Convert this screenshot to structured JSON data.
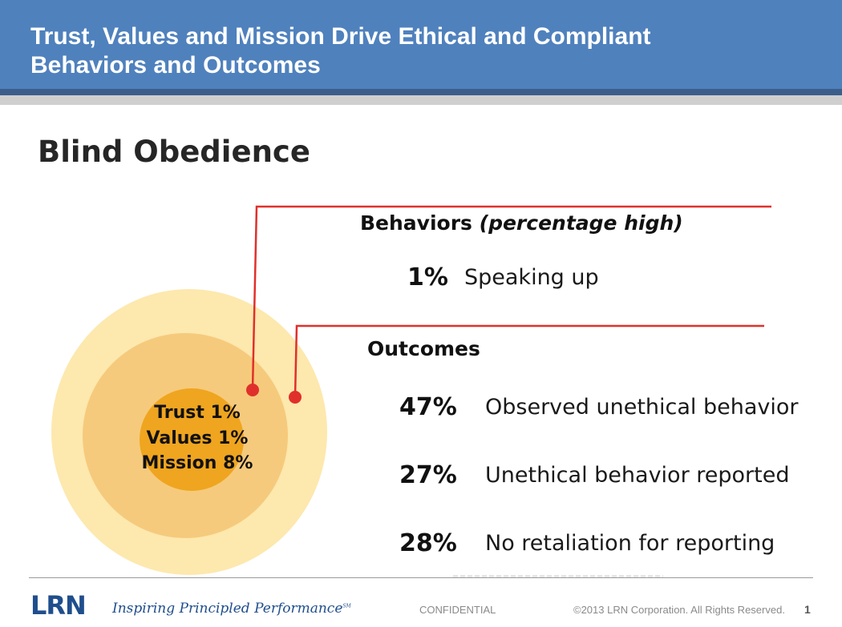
{
  "header": {
    "title_line1": "Trust, Values and Mission Drive Ethical and Compliant",
    "title_line2": "Behaviors and Outcomes",
    "color": "#4f81bd"
  },
  "heading": "Blind Obedience",
  "circles": {
    "lines": [
      "Trust 1%",
      "Values 1%",
      "Mission 8%"
    ],
    "colors": {
      "outer": "#fde8ae",
      "middle": "#f6ca7c",
      "inner": "#efa51f"
    }
  },
  "connector_color": "#e0302b",
  "behaviors": {
    "title": "Behaviors",
    "note": "(percentage high)",
    "items": [
      {
        "pct": "1%",
        "label": "Speaking up"
      }
    ]
  },
  "outcomes": {
    "title": "Outcomes",
    "items": [
      {
        "pct": "47%",
        "label": "Observed unethical behavior"
      },
      {
        "pct": "27%",
        "label": "Unethical behavior reported"
      },
      {
        "pct": "28%",
        "label": "No retaliation for reporting"
      }
    ]
  },
  "footer": {
    "logo": "LRN",
    "tagline": "Inspiring Principled Performance",
    "tagline_mark": "SM",
    "confidential": "CONFIDENTIAL",
    "copyright": "©2013 LRN Corporation. All Rights Reserved.",
    "page_number": "1"
  }
}
